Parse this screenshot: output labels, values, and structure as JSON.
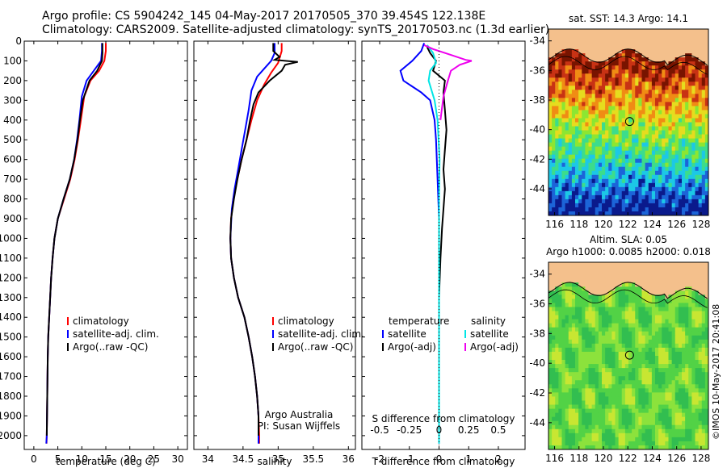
{
  "header": {
    "line1": "Argo profile: CS 5904242_145 04-May-2017 20170505_370 39.454S 122.138E",
    "line2": "Climatology: CARS2009. Satellite-adjusted climatology: synTS_20170503.nc (1.3d earlier)"
  },
  "colors": {
    "climatology": "#ff0000",
    "satellite": "#0000ff",
    "argo": "#000000",
    "sal_satellite": "#00e5e5",
    "sal_argo": "#ee00ee"
  },
  "chart_data": [
    {
      "type": "line",
      "name": "temperature-panel",
      "xlabel": "temperature (deg C)",
      "ylabel": "",
      "xlim": [
        -2,
        32
      ],
      "ylim": [
        2070,
        0
      ],
      "xticks": [
        0,
        5,
        10,
        15,
        20,
        25,
        30
      ],
      "yticks": [
        0,
        100,
        200,
        300,
        400,
        500,
        600,
        700,
        800,
        900,
        1000,
        1100,
        1200,
        1300,
        1400,
        1500,
        1600,
        1700,
        1800,
        1900,
        2000
      ],
      "legend": [
        "climatology",
        "satellite-adj. clim.",
        "Argo(..raw -QC)"
      ],
      "legend_position": "lower-right",
      "series": [
        {
          "name": "climatology",
          "color": "#ff0000",
          "points": [
            [
              15.0,
              10
            ],
            [
              15.0,
              50
            ],
            [
              14.7,
              100
            ],
            [
              13.6,
              150
            ],
            [
              11.8,
              200
            ],
            [
              10.5,
              280
            ],
            [
              9.8,
              400
            ],
            [
              9.2,
              500
            ],
            [
              8.5,
              600
            ],
            [
              7.6,
              700
            ],
            [
              6.3,
              800
            ],
            [
              5.0,
              900
            ],
            [
              4.3,
              1000
            ],
            [
              3.9,
              1100
            ],
            [
              3.6,
              1200
            ],
            [
              3.4,
              1300
            ],
            [
              3.2,
              1400
            ],
            [
              3.0,
              1500
            ],
            [
              2.9,
              1600
            ],
            [
              2.8,
              1800
            ],
            [
              2.7,
              2000
            ],
            [
              2.65,
              2040
            ]
          ]
        },
        {
          "name": "satellite-adj. clim.",
          "color": "#0000ff",
          "points": [
            [
              14.2,
              10
            ],
            [
              14.2,
              50
            ],
            [
              14.0,
              100
            ],
            [
              12.5,
              150
            ],
            [
              11.0,
              200
            ],
            [
              10.0,
              280
            ],
            [
              9.5,
              400
            ],
            [
              9.0,
              500
            ],
            [
              8.4,
              600
            ],
            [
              7.5,
              700
            ],
            [
              6.2,
              800
            ],
            [
              5.0,
              900
            ],
            [
              4.3,
              1000
            ],
            [
              3.9,
              1100
            ],
            [
              3.6,
              1200
            ],
            [
              3.4,
              1300
            ],
            [
              3.2,
              1400
            ],
            [
              3.0,
              1500
            ],
            [
              2.9,
              1600
            ],
            [
              2.8,
              1800
            ],
            [
              2.7,
              2000
            ],
            [
              2.6,
              2040
            ]
          ]
        },
        {
          "name": "Argo(..raw -QC)",
          "color": "#000000",
          "points": [
            [
              14.3,
              10
            ],
            [
              14.3,
              60
            ],
            [
              14.2,
              100
            ],
            [
              13.2,
              150
            ],
            [
              11.6,
              200
            ],
            [
              10.2,
              300
            ],
            [
              9.6,
              400
            ],
            [
              9.1,
              500
            ],
            [
              8.4,
              600
            ],
            [
              7.5,
              700
            ],
            [
              6.2,
              800
            ],
            [
              5.0,
              900
            ],
            [
              4.3,
              1000
            ],
            [
              3.9,
              1100
            ],
            [
              3.6,
              1200
            ],
            [
              3.4,
              1300
            ],
            [
              3.2,
              1400
            ],
            [
              3.0,
              1500
            ],
            [
              2.9,
              1600
            ],
            [
              2.8,
              1800
            ],
            [
              2.7,
              2000
            ]
          ]
        }
      ]
    },
    {
      "type": "line",
      "name": "salinity-panel",
      "xlabel": "salinity",
      "xlim": [
        33.8,
        36.1
      ],
      "ylim": [
        2070,
        0
      ],
      "xticks": [
        34,
        34.5,
        35,
        35.5,
        36
      ],
      "xtick_labels": [
        "34",
        "34.5",
        "35",
        "35.5",
        "36"
      ],
      "legend": [
        "climatology",
        "satellite-adj. clim.",
        "Argo(..raw -QC)"
      ],
      "legend_position": "lower-right",
      "annotation": [
        "Argo Australia",
        "PI: Susan Wijffels"
      ],
      "series": [
        {
          "name": "climatology",
          "color": "#ff0000",
          "points": [
            [
              35.05,
              10
            ],
            [
              35.05,
              50
            ],
            [
              35.0,
              110
            ],
            [
              34.9,
              160
            ],
            [
              34.8,
              220
            ],
            [
              34.7,
              300
            ],
            [
              34.62,
              400
            ],
            [
              34.55,
              500
            ],
            [
              34.48,
              600
            ],
            [
              34.42,
              700
            ],
            [
              34.36,
              800
            ],
            [
              34.33,
              900
            ],
            [
              34.32,
              1000
            ],
            [
              34.33,
              1100
            ],
            [
              34.37,
              1200
            ],
            [
              34.43,
              1300
            ],
            [
              34.52,
              1400
            ],
            [
              34.58,
              1500
            ],
            [
              34.63,
              1600
            ],
            [
              34.67,
              1700
            ],
            [
              34.7,
              1800
            ],
            [
              34.72,
              1900
            ],
            [
              34.73,
              2000
            ],
            [
              34.73,
              2040
            ]
          ]
        },
        {
          "name": "satellite-adj. clim.",
          "color": "#0000ff",
          "points": [
            [
              34.95,
              10
            ],
            [
              34.95,
              60
            ],
            [
              34.9,
              100
            ],
            [
              34.8,
              140
            ],
            [
              34.7,
              180
            ],
            [
              34.62,
              250
            ],
            [
              34.58,
              350
            ],
            [
              34.53,
              450
            ],
            [
              34.48,
              550
            ],
            [
              34.43,
              650
            ],
            [
              34.38,
              750
            ],
            [
              34.34,
              850
            ],
            [
              34.32,
              1000
            ],
            [
              34.33,
              1100
            ],
            [
              34.37,
              1200
            ],
            [
              34.43,
              1300
            ],
            [
              34.52,
              1400
            ],
            [
              34.58,
              1500
            ],
            [
              34.63,
              1600
            ],
            [
              34.67,
              1700
            ],
            [
              34.7,
              1800
            ],
            [
              34.72,
              1900
            ],
            [
              34.72,
              2000
            ],
            [
              34.72,
              2040
            ]
          ]
        },
        {
          "name": "Argo(..raw -QC)",
          "color": "#000000",
          "points": [
            [
              34.93,
              10
            ],
            [
              34.93,
              50
            ],
            [
              35.02,
              80
            ],
            [
              34.95,
              95
            ],
            [
              35.28,
              105
            ],
            [
              35.1,
              120
            ],
            [
              35.05,
              150
            ],
            [
              34.88,
              200
            ],
            [
              34.72,
              260
            ],
            [
              34.65,
              320
            ],
            [
              34.6,
              400
            ],
            [
              34.55,
              500
            ],
            [
              34.48,
              600
            ],
            [
              34.42,
              700
            ],
            [
              34.37,
              800
            ],
            [
              34.33,
              900
            ],
            [
              34.32,
              1000
            ],
            [
              34.33,
              1100
            ],
            [
              34.37,
              1200
            ],
            [
              34.43,
              1300
            ],
            [
              34.52,
              1400
            ],
            [
              34.58,
              1500
            ],
            [
              34.63,
              1600
            ],
            [
              34.67,
              1700
            ],
            [
              34.7,
              1800
            ],
            [
              34.72,
              1900
            ],
            [
              34.72,
              2000
            ]
          ]
        }
      ]
    },
    {
      "type": "line",
      "name": "difference-panel",
      "xlabel": "T difference from climatology",
      "xlabel_top": "S difference from climatology",
      "xlim": [
        -2.6,
        2.9
      ],
      "ylim": [
        2070,
        0
      ],
      "xticks": [
        -2,
        -1,
        0,
        1,
        2
      ],
      "s_ticks": [
        "-0.5",
        "-0.25",
        "0",
        "0.25",
        "0.5"
      ],
      "legend": {
        "temperature_heading": "temperature",
        "salinity_heading": "salinity",
        "t_satellite": "satellite",
        "t_argo": "Argo(-adj)",
        "s_satellite": "satellite",
        "s_argo": "Argo(-adj)"
      },
      "series": [
        {
          "name": "temperature satellite",
          "color": "#0000ff",
          "points": [
            [
              -0.5,
              10
            ],
            [
              -0.6,
              50
            ],
            [
              -0.9,
              100
            ],
            [
              -1.3,
              150
            ],
            [
              -1.2,
              200
            ],
            [
              -0.6,
              260
            ],
            [
              -0.3,
              300
            ],
            [
              -0.15,
              400
            ],
            [
              -0.1,
              500
            ],
            [
              -0.05,
              700
            ],
            [
              0,
              900
            ],
            [
              0,
              1200
            ],
            [
              0,
              1600
            ],
            [
              0,
              2040
            ]
          ]
        },
        {
          "name": "temperature Argo(-adj)",
          "color": "#000000",
          "points": [
            [
              -0.4,
              30
            ],
            [
              -0.3,
              60
            ],
            [
              -0.1,
              100
            ],
            [
              -0.2,
              150
            ],
            [
              0.2,
              200
            ],
            [
              0.15,
              260
            ],
            [
              0.2,
              350
            ],
            [
              0.25,
              450
            ],
            [
              0.2,
              550
            ],
            [
              0.15,
              650
            ],
            [
              0.2,
              750
            ],
            [
              0.15,
              850
            ],
            [
              0.1,
              950
            ],
            [
              0.05,
              1100
            ],
            [
              0.0,
              1300
            ],
            [
              0.0,
              1600
            ],
            [
              0.0,
              2000
            ]
          ]
        },
        {
          "name": "salinity satellite",
          "color": "#00e5e5",
          "points": [
            [
              -0.4,
              20
            ],
            [
              -0.2,
              60
            ],
            [
              -0.1,
              110
            ],
            [
              -0.3,
              150
            ],
            [
              -0.35,
              200
            ],
            [
              -0.15,
              300
            ],
            [
              -0.05,
              400
            ],
            [
              0.02,
              600
            ],
            [
              0.0,
              800
            ],
            [
              0.0,
              1100
            ],
            [
              0.0,
              1500
            ],
            [
              0.0,
              2040
            ]
          ]
        },
        {
          "name": "salinity Argo(-adj)",
          "color": "#ee00ee",
          "points": [
            [
              -0.5,
              20
            ],
            [
              -0.2,
              40
            ],
            [
              0.4,
              70
            ],
            [
              0.9,
              95
            ],
            [
              1.1,
              100
            ],
            [
              0.7,
              120
            ],
            [
              0.4,
              150
            ],
            [
              0.3,
              200
            ],
            [
              0.15,
              280
            ],
            [
              0.05,
              400
            ]
          ]
        }
      ]
    },
    {
      "type": "heatmap",
      "name": "sst-map",
      "title": "sat. SST: 14.3 Argo: 14.1",
      "xlim": [
        115.5,
        128.6
      ],
      "ylim": [
        -45.8,
        -33.2
      ],
      "xticks": [
        116,
        118,
        120,
        122,
        124,
        126,
        128
      ],
      "yticks": [
        -34,
        -36,
        -38,
        -40,
        -42,
        -44
      ],
      "profile_position": [
        122.14,
        -39.45
      ],
      "colorscale": [
        "#0a1a8c",
        "#1c64d8",
        "#1cc8e6",
        "#3cdc8c",
        "#8ce632",
        "#e6dc1e",
        "#f08c14",
        "#c83214",
        "#781400"
      ]
    },
    {
      "type": "heatmap",
      "name": "sla-map",
      "title": "Altim. SLA: 0.05",
      "subtitle": "Argo h1000: 0.0085 h2000: 0.018",
      "xlim": [
        115.5,
        128.6
      ],
      "ylim": [
        -45.8,
        -33.2
      ],
      "xticks": [
        116,
        118,
        120,
        122,
        124,
        126,
        128
      ],
      "yticks": [
        -34,
        -36,
        -38,
        -40,
        -42,
        -44
      ],
      "profile_position": [
        122.14,
        -39.45
      ]
    }
  ],
  "footer": {
    "credit": "©IMOS 10-May-2017 20:41:08"
  }
}
